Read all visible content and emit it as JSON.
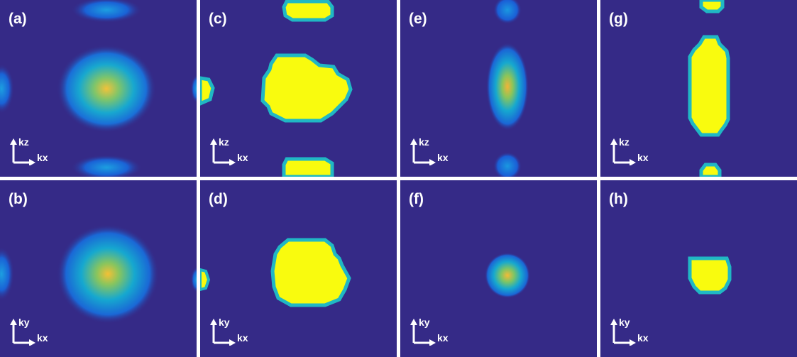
{
  "panels": [
    {
      "label": "(a)",
      "axis_vertical": "kz",
      "axis_horizontal": "kx"
    },
    {
      "label": "(c)",
      "axis_vertical": "kz",
      "axis_horizontal": "kx"
    },
    {
      "label": "(e)",
      "axis_vertical": "kz",
      "axis_horizontal": "kx"
    },
    {
      "label": "(g)",
      "axis_vertical": "kz",
      "axis_horizontal": "kx"
    },
    {
      "label": "(b)",
      "axis_vertical": "ky",
      "axis_horizontal": "kx"
    },
    {
      "label": "(d)",
      "axis_vertical": "ky",
      "axis_horizontal": "kx"
    },
    {
      "label": "(f)",
      "axis_vertical": "ky",
      "axis_horizontal": "kx"
    },
    {
      "label": "(h)",
      "axis_vertical": "ky",
      "axis_horizontal": "kx"
    }
  ],
  "colors": {
    "background": "#352a87",
    "low": "#0f5cdd",
    "mid": "#14b0c8",
    "high": "#f9fb0e",
    "separator": "#ffffff"
  }
}
